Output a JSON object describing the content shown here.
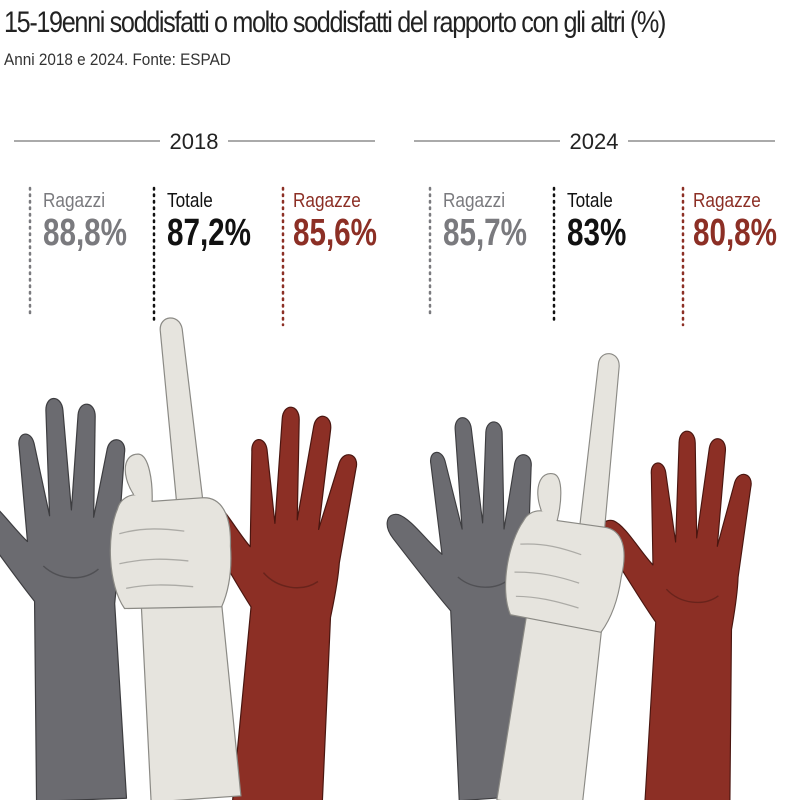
{
  "title": "15-19enni soddisfatti o molto soddisfatti del rapporto con gli altri  (%)",
  "subtitle": "Anni 2018 e 2024. Fonte: ESPAD",
  "colors": {
    "ragazzi": "#6b6b70",
    "totale": "#e6e4de",
    "ragazze": "#8c2f25",
    "label_ragazzi": "#7a7a7e",
    "label_totale": "#111111",
    "label_ragazze": "#8c2f25"
  },
  "chart_data": {
    "type": "pictogram",
    "title": "15-19enni soddisfatti o molto soddisfatti del rapporto con gli altri  (%)",
    "subtitle": "Anni 2018 e 2024. Fonte: ESPAD",
    "unit": "%",
    "groups": [
      {
        "year": "2018",
        "items": [
          {
            "name": "Ragazzi",
            "value": 88.8,
            "label": "88,8%"
          },
          {
            "name": "Totale",
            "value": 87.2,
            "label": "87,2%"
          },
          {
            "name": "Ragazze",
            "value": 85.6,
            "label": "85,6%"
          }
        ]
      },
      {
        "year": "2024",
        "items": [
          {
            "name": "Ragazzi",
            "value": 85.7,
            "label": "85,7%"
          },
          {
            "name": "Totale",
            "value": 83,
            "label": "83%"
          },
          {
            "name": "Ragazze",
            "value": 80.8,
            "label": "80,8%"
          }
        ]
      }
    ]
  }
}
